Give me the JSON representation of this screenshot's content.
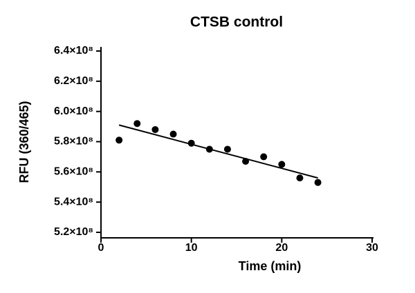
{
  "chart_data": {
    "type": "scatter",
    "title": "CTSB control",
    "x_label": "Time (min)",
    "y_label": "RFU (360/465)",
    "x": [
      2,
      4,
      6,
      8,
      10,
      12,
      14,
      16,
      18,
      20,
      22,
      24
    ],
    "values": [
      581000000,
      592000000,
      588000000,
      585000000,
      579000000,
      575000000,
      575000000,
      567000000,
      570000000,
      565000000,
      556000000,
      553000000
    ],
    "color": "#000000",
    "fit": {
      "x": [
        2,
        24
      ],
      "values": [
        591000000,
        556000000
      ],
      "color": "#000000"
    },
    "xlim": [
      0,
      30
    ],
    "xticks": [
      0,
      10,
      20,
      30
    ],
    "ylim": [
      520000000,
      640000000
    ],
    "yticks": [
      {
        "value": 520000000,
        "label": "5.2×10⁸"
      },
      {
        "value": 540000000,
        "label": "5.4×10⁸"
      },
      {
        "value": 560000000,
        "label": "5.6×10⁸"
      },
      {
        "value": 580000000,
        "label": "5.8×10⁸"
      },
      {
        "value": 600000000,
        "label": "6.0×10⁸"
      },
      {
        "value": 620000000,
        "label": "6.2×10⁸"
      },
      {
        "value": 640000000,
        "label": "6.4×10⁸"
      }
    ],
    "grid": false
  }
}
